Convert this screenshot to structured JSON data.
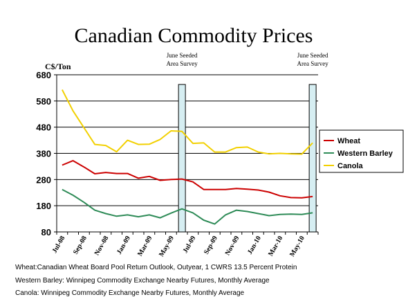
{
  "title": "Canadian Commodity Prices",
  "footnotes": [
    "Wheat:Canadian Wheat Board Pool Return Outlook, Outyear, 1 CWRS 13.5 Percent Protein",
    "Western Barley: Winnipeg Commodity Exchange Nearby Futures, Monthly Average",
    "Canola: Winnipeg Commodity Exchange Nearby Futures, Monthly Average"
  ],
  "chart_data": {
    "type": "line",
    "title": "Canadian Commodity Prices",
    "ylabel": "C$/Ton",
    "xlabel": "",
    "ylim": [
      80,
      680
    ],
    "yticks": [
      80,
      180,
      280,
      380,
      480,
      580,
      680
    ],
    "grid": "horizontal",
    "legend_position": "right",
    "x": [
      "Jul-08",
      "Aug-08",
      "Sep-08",
      "Oct-08",
      "Nov-08",
      "Dec-08",
      "Jan-09",
      "Feb-09",
      "Mar-09",
      "Apr-09",
      "May-09",
      "Jun-09",
      "Jul-09",
      "Aug-09",
      "Sep-09",
      "Oct-09",
      "Nov-09",
      "Dec-09",
      "Jan-10",
      "Feb-10",
      "Mar-10",
      "Apr-10",
      "May-10",
      "Jun-10"
    ],
    "x_tick_labels": [
      "Jul-08",
      "Sep-08",
      "Nov-08",
      "Jan-09",
      "Mar-09",
      "May-09",
      "Jul-09",
      "Sep-09",
      "Nov-09",
      "Jan-10",
      "Mar-10",
      "May-10"
    ],
    "series": [
      {
        "name": "Wheat",
        "color": "#cc0000",
        "values": [
          335,
          352,
          328,
          302,
          307,
          303,
          303,
          285,
          292,
          277,
          280,
          282,
          271,
          242,
          242,
          242,
          246,
          243,
          240,
          232,
          218,
          211,
          210,
          215
        ]
      },
      {
        "name": "Western Barley",
        "color": "#2e8b57",
        "values": [
          242,
          220,
          193,
          163,
          150,
          140,
          145,
          138,
          145,
          134,
          152,
          168,
          153,
          125,
          110,
          145,
          163,
          158,
          150,
          142,
          147,
          148,
          147,
          153
        ]
      },
      {
        "name": "Canola",
        "color": "#f2d000",
        "values": [
          623,
          542,
          478,
          414,
          410,
          386,
          430,
          414,
          415,
          433,
          466,
          464,
          418,
          420,
          385,
          385,
          402,
          404,
          385,
          378,
          380,
          378,
          377,
          420
        ]
      }
    ],
    "annotations": [
      {
        "label": "June Seeded Area Survey",
        "line1": "June Seeded",
        "line2": "Area Survey",
        "x": "Jun-09"
      },
      {
        "label": "June Seeded Area Survey",
        "line1": "June Seeded",
        "line2": "Area Survey",
        "x": "Jun-10"
      }
    ]
  }
}
